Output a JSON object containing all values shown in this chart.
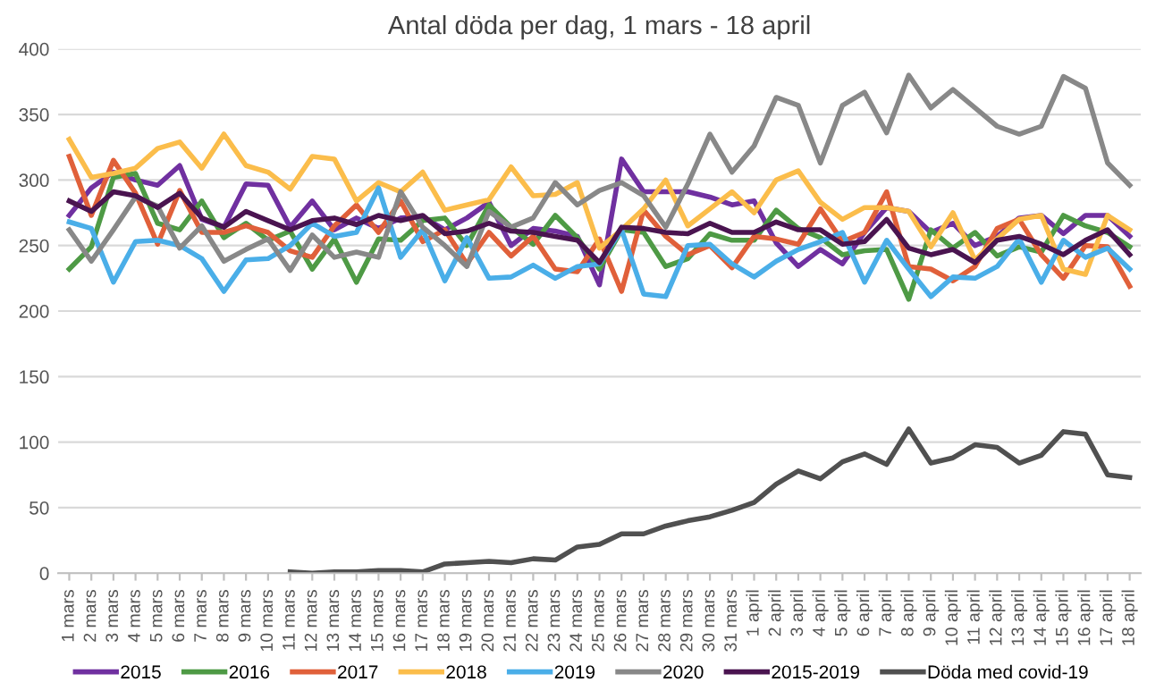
{
  "chart_data": {
    "type": "line",
    "title": "Antal döda per dag, 1 mars - 18 april",
    "categories": [
      "1 mars",
      "2 mars",
      "3 mars",
      "4 mars",
      "5 mars",
      "6 mars",
      "7 mars",
      "8 mars",
      "9 mars",
      "10 mars",
      "11 mars",
      "12 mars",
      "13 mars",
      "14 mars",
      "15 mars",
      "16 mars",
      "17 mars",
      "18 mars",
      "19 mars",
      "20 mars",
      "21 mars",
      "22 mars",
      "23 mars",
      "24 mars",
      "25 mars",
      "26 mars",
      "27 mars",
      "28 mars",
      "29 mars",
      "30 mars",
      "31 mars",
      "1 april",
      "2 april",
      "3 april",
      "4 april",
      "5 april",
      "6 april",
      "7 april",
      "8 april",
      "9 april",
      "10 april",
      "11 april",
      "12 april",
      "13 april",
      "14 april",
      "15 april",
      "16 april",
      "17 april",
      "18 april"
    ],
    "series": [
      {
        "name": "2015",
        "color": "#7030a0",
        "values": [
          273,
          294,
          306,
          300,
          296,
          311,
          270,
          264,
          297,
          296,
          264,
          284,
          262,
          271,
          263,
          271,
          272,
          262,
          271,
          283,
          250,
          263,
          261,
          257,
          220,
          316,
          291,
          291,
          291,
          287,
          281,
          284,
          252,
          234,
          247,
          236,
          260,
          279,
          276,
          260,
          267,
          250,
          257,
          271,
          273,
          259,
          273,
          273,
          257
        ]
      },
      {
        "name": "2016",
        "color": "#4e9a45",
        "values": [
          232,
          249,
          302,
          305,
          267,
          262,
          284,
          256,
          267,
          254,
          261,
          232,
          255,
          222,
          255,
          254,
          269,
          271,
          250,
          281,
          264,
          251,
          273,
          256,
          232,
          262,
          260,
          234,
          240,
          259,
          254,
          254,
          277,
          263,
          256,
          243,
          246,
          247,
          209,
          262,
          248,
          260,
          242,
          249,
          245,
          273,
          265,
          260,
          249
        ]
      },
      {
        "name": "2017",
        "color": "#e0603a",
        "values": [
          318,
          273,
          315,
          290,
          251,
          292,
          260,
          260,
          265,
          260,
          246,
          241,
          265,
          281,
          260,
          284,
          253,
          262,
          236,
          260,
          242,
          257,
          232,
          230,
          255,
          215,
          277,
          257,
          243,
          250,
          233,
          257,
          255,
          251,
          278,
          253,
          260,
          291,
          234,
          232,
          223,
          234,
          263,
          270,
          243,
          225,
          250,
          249,
          219
        ]
      },
      {
        "name": "2018",
        "color": "#fbbd4b",
        "values": [
          331,
          302,
          305,
          309,
          324,
          329,
          309,
          335,
          311,
          306,
          293,
          318,
          316,
          284,
          298,
          291,
          306,
          277,
          281,
          285,
          310,
          288,
          289,
          298,
          248,
          262,
          278,
          300,
          265,
          278,
          291,
          275,
          300,
          307,
          283,
          270,
          279,
          279,
          276,
          249,
          275,
          239,
          255,
          270,
          273,
          232,
          228,
          273,
          262
        ]
      },
      {
        "name": "2019",
        "color": "#4aaee8",
        "values": [
          268,
          263,
          222,
          253,
          254,
          250,
          240,
          215,
          239,
          240,
          250,
          267,
          257,
          260,
          294,
          241,
          262,
          223,
          256,
          225,
          226,
          235,
          225,
          234,
          236,
          262,
          213,
          211,
          250,
          251,
          236,
          226,
          238,
          247,
          253,
          260,
          222,
          254,
          232,
          211,
          226,
          225,
          234,
          255,
          222,
          254,
          241,
          248,
          232
        ]
      },
      {
        "name": "2020",
        "color": "#888888",
        "values": [
          262,
          238,
          262,
          287,
          280,
          248,
          265,
          238,
          247,
          255,
          231,
          258,
          241,
          245,
          241,
          291,
          264,
          250,
          234,
          276,
          264,
          271,
          298,
          281,
          292,
          298,
          288,
          264,
          297,
          335,
          306,
          326,
          363,
          357,
          313,
          357,
          367,
          336,
          380,
          355,
          369,
          355,
          341,
          335,
          341,
          379,
          370,
          313,
          296
        ]
      },
      {
        "name": "2015-2019",
        "color": "#4a1450",
        "values": [
          284,
          276,
          291,
          288,
          279,
          290,
          271,
          264,
          276,
          269,
          262,
          269,
          271,
          266,
          273,
          269,
          273,
          259,
          261,
          267,
          261,
          260,
          257,
          254,
          237,
          264,
          263,
          260,
          259,
          267,
          260,
          260,
          268,
          262,
          262,
          251,
          253,
          270,
          248,
          243,
          247,
          237,
          254,
          257,
          251,
          243,
          254,
          262,
          243
        ]
      },
      {
        "name": "Döda med covid-19",
        "color": "#505050",
        "values": [
          null,
          null,
          null,
          null,
          null,
          null,
          null,
          null,
          null,
          null,
          1,
          0,
          1,
          1,
          2,
          2,
          1,
          7,
          8,
          9,
          8,
          11,
          10,
          20,
          22,
          30,
          30,
          36,
          40,
          43,
          48,
          54,
          68,
          78,
          72,
          85,
          91,
          83,
          110,
          84,
          88,
          98,
          96,
          84,
          90,
          108,
          106,
          75,
          73
        ]
      }
    ],
    "ylim": [
      0,
      400
    ],
    "yticks": [
      0,
      50,
      100,
      150,
      200,
      250,
      300,
      350,
      400
    ],
    "grid": "y",
    "legend": "bottom",
    "marker": "none",
    "line_style": "solid"
  }
}
